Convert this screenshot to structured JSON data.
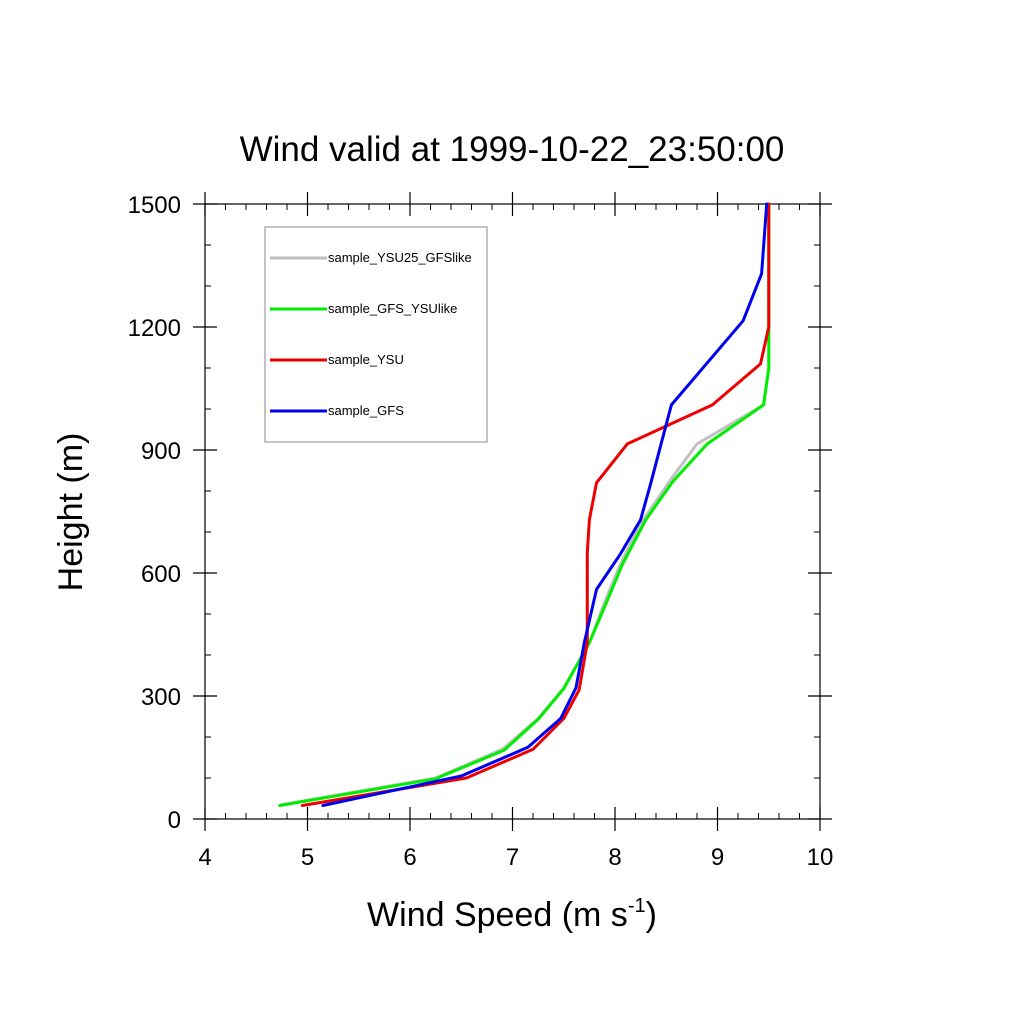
{
  "chart_data": {
    "type": "line",
    "title": "Wind valid at 1999-10-22_23:50:00",
    "xlabel": {
      "base": "Wind Speed (m s",
      "superscript": "-1",
      "suffix": ")"
    },
    "ylabel": "Height (m)",
    "xlim": [
      4,
      10
    ],
    "ylim": [
      0,
      1500
    ],
    "xticks": [
      4,
      5,
      6,
      7,
      8,
      9,
      10
    ],
    "yticks": [
      0,
      300,
      600,
      900,
      1200,
      1500
    ],
    "legend_position": "top-left",
    "series": [
      {
        "name": "sample_YSU25_GFSlike",
        "color": "#c0c0c0",
        "points": [
          [
            4.75,
            35
          ],
          [
            6.25,
            100
          ],
          [
            6.9,
            170
          ],
          [
            7.25,
            245
          ],
          [
            7.5,
            320
          ],
          [
            7.75,
            430
          ],
          [
            7.9,
            530
          ],
          [
            8.05,
            620
          ],
          [
            8.25,
            720
          ],
          [
            8.55,
            830
          ],
          [
            8.8,
            915
          ],
          [
            9.45,
            1010
          ],
          [
            9.5,
            1100
          ],
          [
            9.5,
            1250
          ],
          [
            9.5,
            1500
          ]
        ]
      },
      {
        "name": "sample_GFS_YSUlike",
        "color": "#00ee00",
        "points": [
          [
            4.73,
            33
          ],
          [
            6.25,
            98
          ],
          [
            6.92,
            168
          ],
          [
            7.25,
            243
          ],
          [
            7.5,
            318
          ],
          [
            7.75,
            430
          ],
          [
            7.92,
            530
          ],
          [
            8.07,
            620
          ],
          [
            8.3,
            730
          ],
          [
            8.57,
            825
          ],
          [
            8.9,
            915
          ],
          [
            9.45,
            1010
          ],
          [
            9.5,
            1100
          ],
          [
            9.5,
            1250
          ],
          [
            9.5,
            1500
          ]
        ]
      },
      {
        "name": "sample_YSU",
        "color": "#ee0000",
        "points": [
          [
            4.95,
            33
          ],
          [
            6.55,
            100
          ],
          [
            7.2,
            170
          ],
          [
            7.5,
            245
          ],
          [
            7.65,
            315
          ],
          [
            7.73,
            430
          ],
          [
            7.73,
            650
          ],
          [
            7.75,
            730
          ],
          [
            7.82,
            820
          ],
          [
            8.12,
            915
          ],
          [
            8.95,
            1010
          ],
          [
            9.42,
            1110
          ],
          [
            9.5,
            1200
          ],
          [
            9.5,
            1500
          ]
        ]
      },
      {
        "name": "sample_GFS",
        "color": "#0000ee",
        "points": [
          [
            5.15,
            33
          ],
          [
            6.5,
            105
          ],
          [
            7.15,
            175
          ],
          [
            7.47,
            245
          ],
          [
            7.62,
            320
          ],
          [
            7.7,
            430
          ],
          [
            7.82,
            560
          ],
          [
            8.05,
            645
          ],
          [
            8.25,
            730
          ],
          [
            8.35,
            820
          ],
          [
            8.45,
            915
          ],
          [
            8.55,
            1010
          ],
          [
            9.25,
            1215
          ],
          [
            9.43,
            1330
          ],
          [
            9.48,
            1500
          ]
        ]
      }
    ]
  }
}
